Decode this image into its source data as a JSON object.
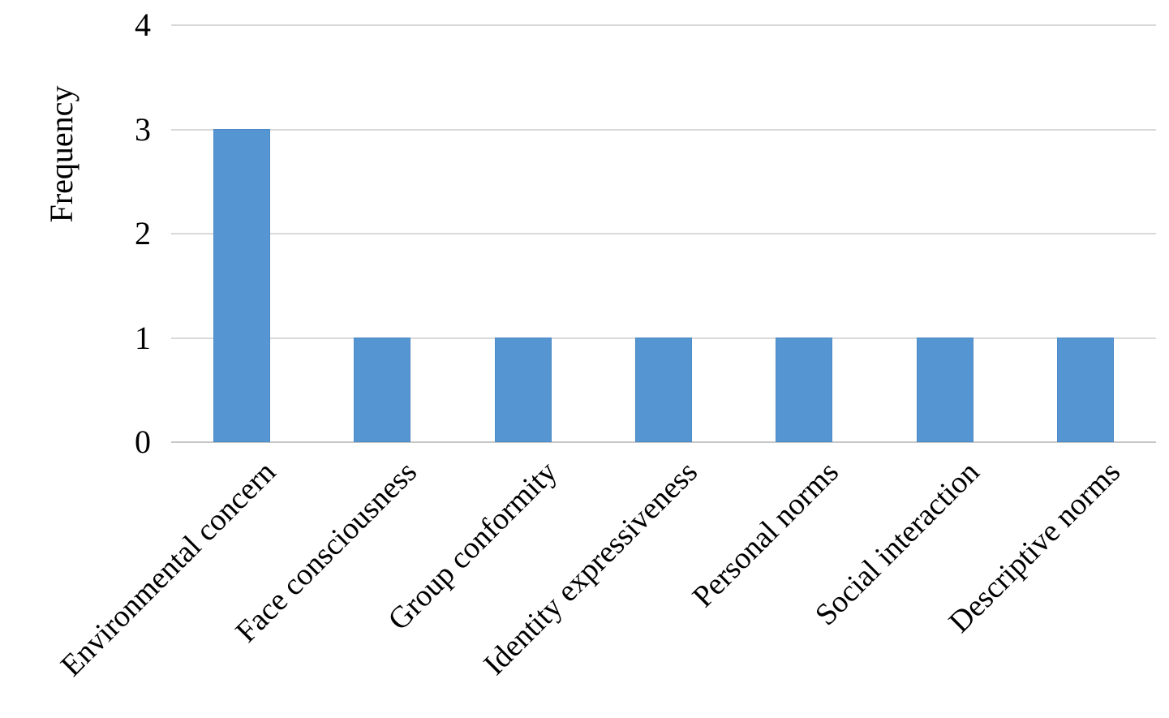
{
  "chart_data": {
    "type": "bar",
    "categories": [
      "Environmental concern",
      "Face consciousness",
      "Group conformity",
      "Identity expressiveness",
      "Personal norms",
      "Social interaction",
      "Descriptive norms"
    ],
    "values": [
      3,
      1,
      1,
      1,
      1,
      1,
      1
    ],
    "title": "",
    "xlabel": "",
    "ylabel": "Frequency",
    "ylim": [
      0,
      4
    ],
    "yticks": [
      0,
      1,
      2,
      3,
      4
    ],
    "grid": true,
    "legend": "none",
    "bar_color": "#5596d2",
    "gridline_color": "#d9d9d9",
    "baseline_color": "#c6c6c6",
    "text_color": "#000000"
  }
}
